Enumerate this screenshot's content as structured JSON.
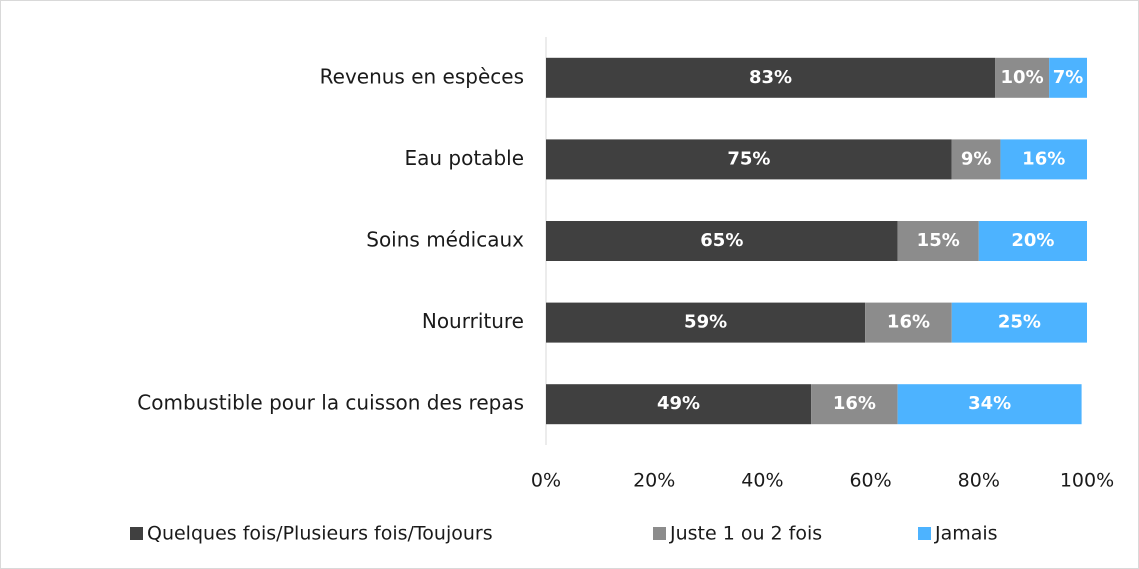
{
  "chart_data": {
    "type": "stacked-bar-horizontal",
    "categories": [
      "Revenus en espèces",
      "Eau potable",
      "Soins médicaux",
      "Nourriture",
      "Combustible pour la cuisson des repas"
    ],
    "series": [
      {
        "name": "Quelques fois/Plusieurs fois/Toujours",
        "color": "#404040",
        "values": [
          83,
          75,
          65,
          59,
          49
        ],
        "value_labels": [
          "83%",
          "75%",
          "65%",
          "59%",
          "49%"
        ]
      },
      {
        "name": "Juste 1 ou 2 fois",
        "color": "#8c8c8c",
        "values": [
          10,
          9,
          15,
          16,
          16
        ],
        "value_labels": [
          "10%",
          "9%",
          "15%",
          "16%",
          "16%"
        ]
      },
      {
        "name": "Jamais",
        "color": "#4db3ff",
        "values": [
          7,
          16,
          20,
          25,
          34
        ],
        "value_labels": [
          "7%",
          "16%",
          "20%",
          "25%",
          "34%"
        ]
      }
    ],
    "xlim": [
      0,
      100
    ],
    "xticks": [
      {
        "value": 0,
        "label": "0%"
      },
      {
        "value": 20,
        "label": "20%"
      },
      {
        "value": 40,
        "label": "40%"
      },
      {
        "value": 60,
        "label": "60%"
      },
      {
        "value": 80,
        "label": "80%"
      },
      {
        "value": 100,
        "label": "100%"
      }
    ],
    "legend": "bottom"
  }
}
